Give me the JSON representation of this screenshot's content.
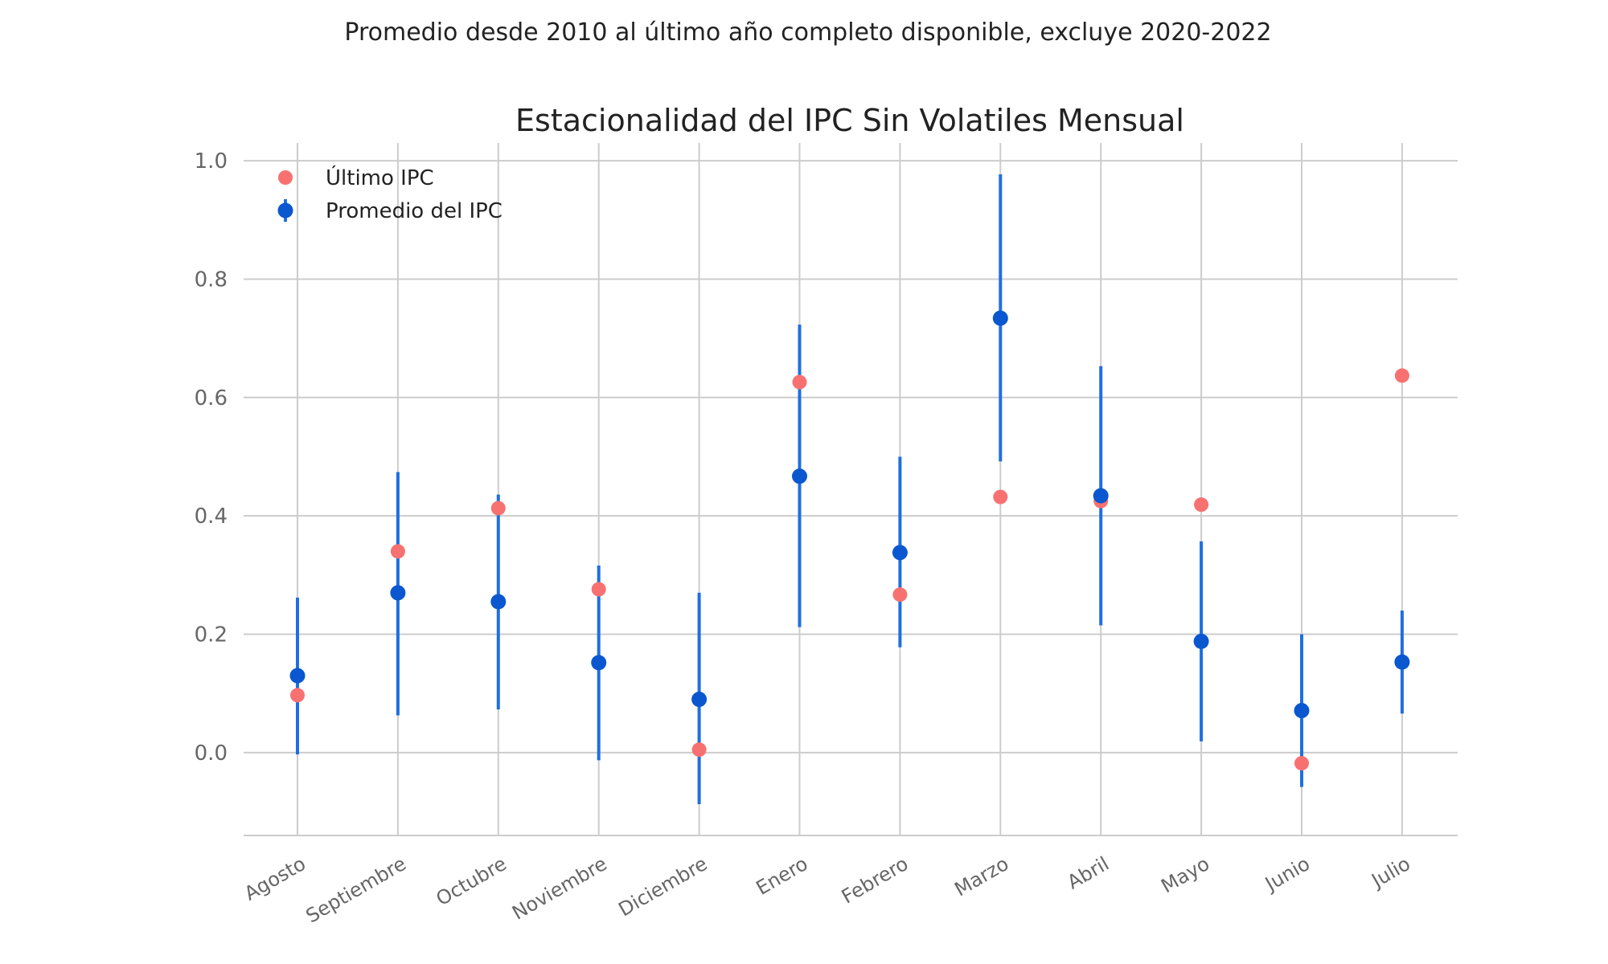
{
  "chart_data": {
    "type": "scatter",
    "suptitle": "Promedio desde 2010 al último año completo disponible, excluye 2020-2022",
    "title": "Estacionalidad del IPC Sin Volatiles Mensual",
    "xlabel": "",
    "ylabel": "",
    "categories": [
      "Agosto",
      "Septiembre",
      "Octubre",
      "Noviembre",
      "Diciembre",
      "Enero",
      "Febrero",
      "Marzo",
      "Abril",
      "Mayo",
      "Junio",
      "Julio"
    ],
    "ylim": [
      -0.14,
      1.03
    ],
    "yticks": [
      0.0,
      0.2,
      0.4,
      0.6,
      0.8,
      1.0
    ],
    "ytick_labels": [
      "0.0",
      "0.2",
      "0.4",
      "0.6",
      "0.8",
      "1.0"
    ],
    "grid": true,
    "legend_position": "top-left",
    "series": [
      {
        "name": "Último IPC",
        "kind": "points",
        "color": "#f87171",
        "values": [
          0.097,
          0.34,
          0.413,
          0.276,
          0.005,
          0.626,
          0.267,
          0.432,
          0.425,
          0.419,
          -0.018,
          0.637
        ]
      },
      {
        "name": "Promedio del IPC",
        "kind": "points_with_errorbars",
        "color": "#0b57d0",
        "error_color": "#1f6fe0",
        "values": [
          0.13,
          0.27,
          0.255,
          0.152,
          0.09,
          0.467,
          0.338,
          0.734,
          0.434,
          0.188,
          0.071,
          0.153
        ],
        "lower": [
          -0.003,
          0.063,
          0.073,
          -0.013,
          -0.087,
          0.212,
          0.178,
          0.492,
          0.215,
          0.019,
          -0.058,
          0.066
        ],
        "upper": [
          0.262,
          0.474,
          0.436,
          0.316,
          0.27,
          0.723,
          0.5,
          0.977,
          0.653,
          0.357,
          0.2,
          0.24
        ]
      }
    ]
  }
}
